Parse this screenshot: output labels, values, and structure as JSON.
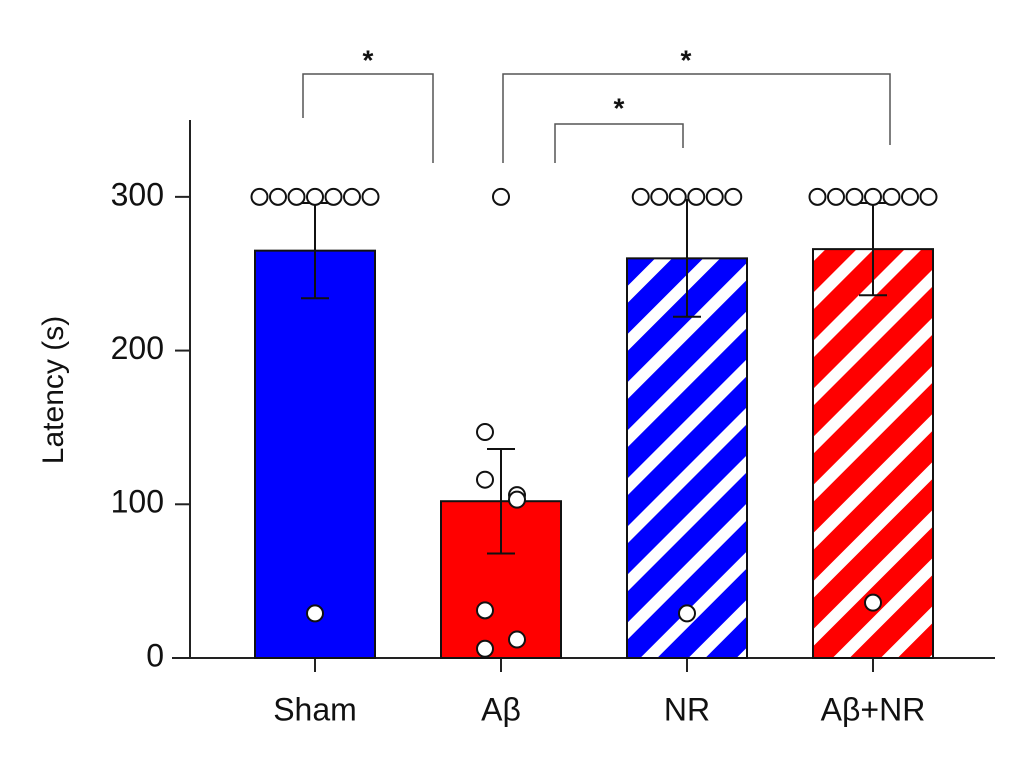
{
  "chart_data": {
    "type": "bar",
    "y_label": "Latency (s)",
    "categories": [
      "Sham",
      "Aβ",
      "NR",
      "Aβ+NR"
    ],
    "values": [
      265,
      102,
      260,
      266
    ],
    "errors": [
      31,
      34,
      38,
      30
    ],
    "colors": [
      "#0000ff",
      "#ff0000",
      "#0000ff",
      "#ff0000"
    ],
    "hatched": [
      false,
      false,
      true,
      true
    ],
    "points": [
      [
        300,
        300,
        300,
        300,
        300,
        300,
        300,
        29
      ],
      [
        300,
        147,
        106,
        116,
        103,
        31,
        12,
        6
      ],
      [
        300,
        300,
        300,
        300,
        300,
        300,
        29
      ],
      [
        300,
        300,
        300,
        300,
        300,
        300,
        300,
        36
      ]
    ],
    "ylim": [
      0,
      350
    ],
    "yticks": [
      0,
      100,
      200,
      300
    ],
    "annotations": [
      "*",
      "*",
      "*"
    ]
  }
}
